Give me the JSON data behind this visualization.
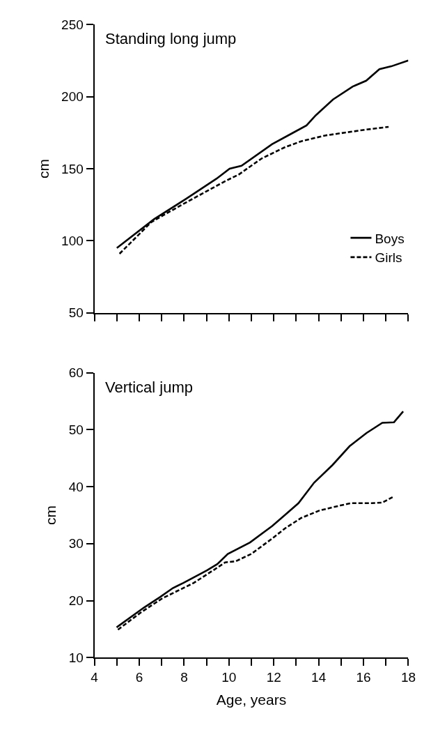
{
  "chart_data": [
    {
      "type": "line",
      "title": "Standing long jump",
      "ylabel": "cm",
      "xlim": [
        4,
        18
      ],
      "xticks": [
        {
          "value": 4,
          "label": null
        },
        {
          "value": 5,
          "label": null
        },
        {
          "value": 6,
          "label": null
        },
        {
          "value": 7,
          "label": null
        },
        {
          "value": 8,
          "label": null
        },
        {
          "value": 9,
          "label": null
        },
        {
          "value": 10,
          "label": null
        },
        {
          "value": 11,
          "label": null
        },
        {
          "value": 12,
          "label": null
        },
        {
          "value": 13,
          "label": null
        },
        {
          "value": 14,
          "label": null
        },
        {
          "value": 15,
          "label": null
        },
        {
          "value": 16,
          "label": null
        },
        {
          "value": 17,
          "label": null
        },
        {
          "value": 18,
          "label": null
        }
      ],
      "ylim": [
        50,
        250
      ],
      "yticks": [
        50,
        100,
        150,
        200,
        250
      ],
      "tick_labels": "y",
      "legend": "bottom right",
      "marker": "none",
      "series": [
        {
          "name": "Boys",
          "color": "#000000",
          "line_style": "solid",
          "x": [
            5.0,
            6.66,
            8.08,
            9.44,
            10.03,
            10.56,
            11.92,
            12.87,
            13.46,
            13.87,
            14.64,
            15.52,
            16.12,
            16.71,
            17.24,
            18.0
          ],
          "values": [
            95,
            115,
            129,
            143,
            150,
            152,
            167,
            175,
            180,
            187,
            198,
            207,
            211,
            219,
            221,
            225
          ]
        },
        {
          "name": "Girls",
          "color": "#000000",
          "line_style": "dashed",
          "x": [
            5.12,
            6.54,
            7.9,
            9.79,
            10.44,
            11.45,
            12.51,
            13.22,
            14.28,
            15.17,
            16.06,
            17.12
          ],
          "values": [
            91,
            113,
            125,
            141,
            146,
            157,
            165,
            169,
            173,
            175,
            177,
            179
          ]
        }
      ]
    },
    {
      "type": "line",
      "title": "Vertical jump",
      "xlabel": "Age, years",
      "ylabel": "cm",
      "xlim": [
        4,
        18
      ],
      "xticks": [
        4,
        {
          "value": 5,
          "label": null
        },
        6,
        {
          "value": 7,
          "label": null
        },
        8,
        {
          "value": 9,
          "label": null
        },
        10,
        {
          "value": 11,
          "label": null
        },
        12,
        {
          "value": 13,
          "label": null
        },
        14,
        {
          "value": 15,
          "label": null
        },
        16,
        {
          "value": 17,
          "label": null
        },
        18
      ],
      "ylim": [
        10,
        60
      ],
      "yticks": [
        10,
        20,
        30,
        40,
        50,
        60
      ],
      "legend": false,
      "marker": "none",
      "series": [
        {
          "color": "#000000",
          "line_style": "solid",
          "x": [
            4.99,
            6.22,
            6.92,
            7.5,
            7.97,
            9.02,
            9.48,
            9.95,
            10.94,
            11.93,
            12.46,
            13.1,
            13.8,
            14.62,
            15.38,
            16.13,
            16.84,
            17.36,
            17.77
          ],
          "values": [
            15.3,
            18.8,
            20.6,
            22.2,
            23.1,
            25.3,
            26.4,
            28.2,
            30.2,
            33.1,
            34.9,
            37.1,
            40.7,
            43.8,
            47.1,
            49.4,
            51.2,
            51.3,
            53.2
          ]
        },
        {
          "color": "#000000",
          "line_style": "dashed",
          "x": [
            5.05,
            6.1,
            7.03,
            8.43,
            9.37,
            9.83,
            10.3,
            11.0,
            11.93,
            12.51,
            13.22,
            14.03,
            14.97,
            15.44,
            16.37,
            16.84,
            17.36
          ],
          "values": [
            14.9,
            18.0,
            20.4,
            23.1,
            25.5,
            26.7,
            26.9,
            28.2,
            30.9,
            32.7,
            34.5,
            35.8,
            36.7,
            37.1,
            37.1,
            37.2,
            38.3
          ]
        }
      ]
    }
  ]
}
